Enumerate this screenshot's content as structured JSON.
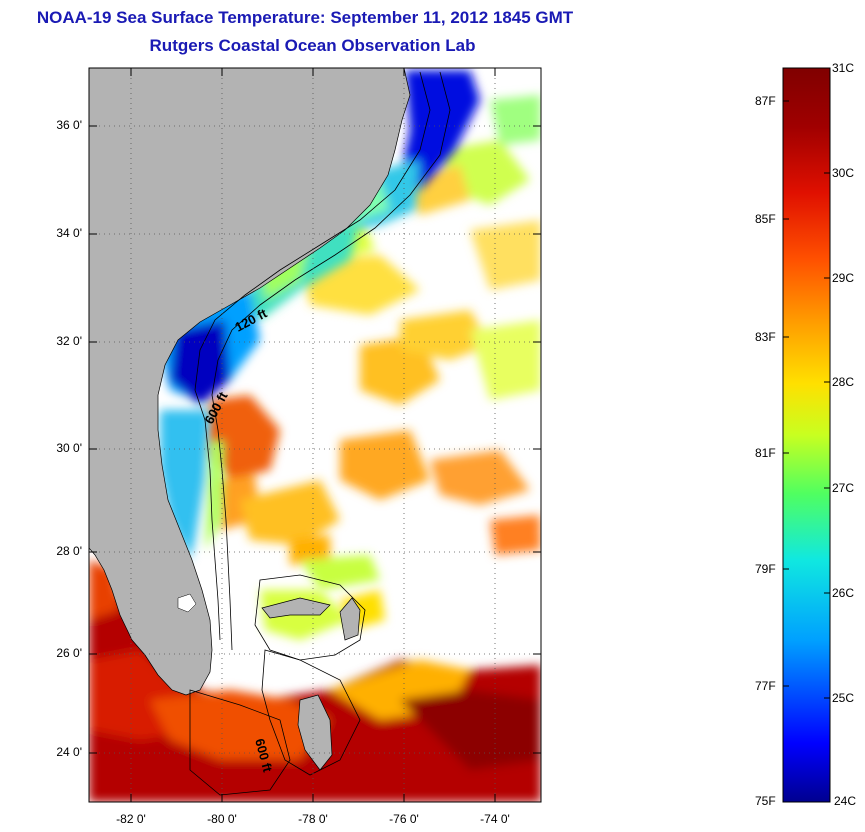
{
  "header": {
    "title": "NOAA-19 Sea Surface Temperature:  September 11, 2012 1845 GMT",
    "subtitle": "Rutgers Coastal Ocean Observation Lab"
  },
  "map": {
    "latitude_ticks": [
      "36 0'",
      "34 0'",
      "32 0'",
      "30 0'",
      "28 0'",
      "26 0'",
      "24 0'"
    ],
    "longitude_ticks": [
      "-82 0'",
      "-80 0'",
      "-78 0'",
      "-76 0'",
      "-74 0'"
    ],
    "isobath_labels": [
      "120 ft",
      "600 ft",
      "600 ft"
    ],
    "colors": {
      "land": "#b3b3b3",
      "ocean_no_data": "#ffffff",
      "grid": "#555555"
    }
  },
  "colorbar": {
    "celsius_labels": [
      "31C",
      "30C",
      "29C",
      "28C",
      "27C",
      "26C",
      "25C",
      "24C"
    ],
    "fahrenheit_labels": [
      "87F",
      "85F",
      "83F",
      "81F",
      "79F",
      "77F",
      "75F"
    ],
    "range_c": [
      24,
      31
    ],
    "colormap": [
      "#00008f",
      "#0000ff",
      "#00a0ff",
      "#10e8e0",
      "#50ff60",
      "#c8ff20",
      "#ffe000",
      "#ffa000",
      "#ff5000",
      "#e01000",
      "#a00000",
      "#800000"
    ]
  }
}
